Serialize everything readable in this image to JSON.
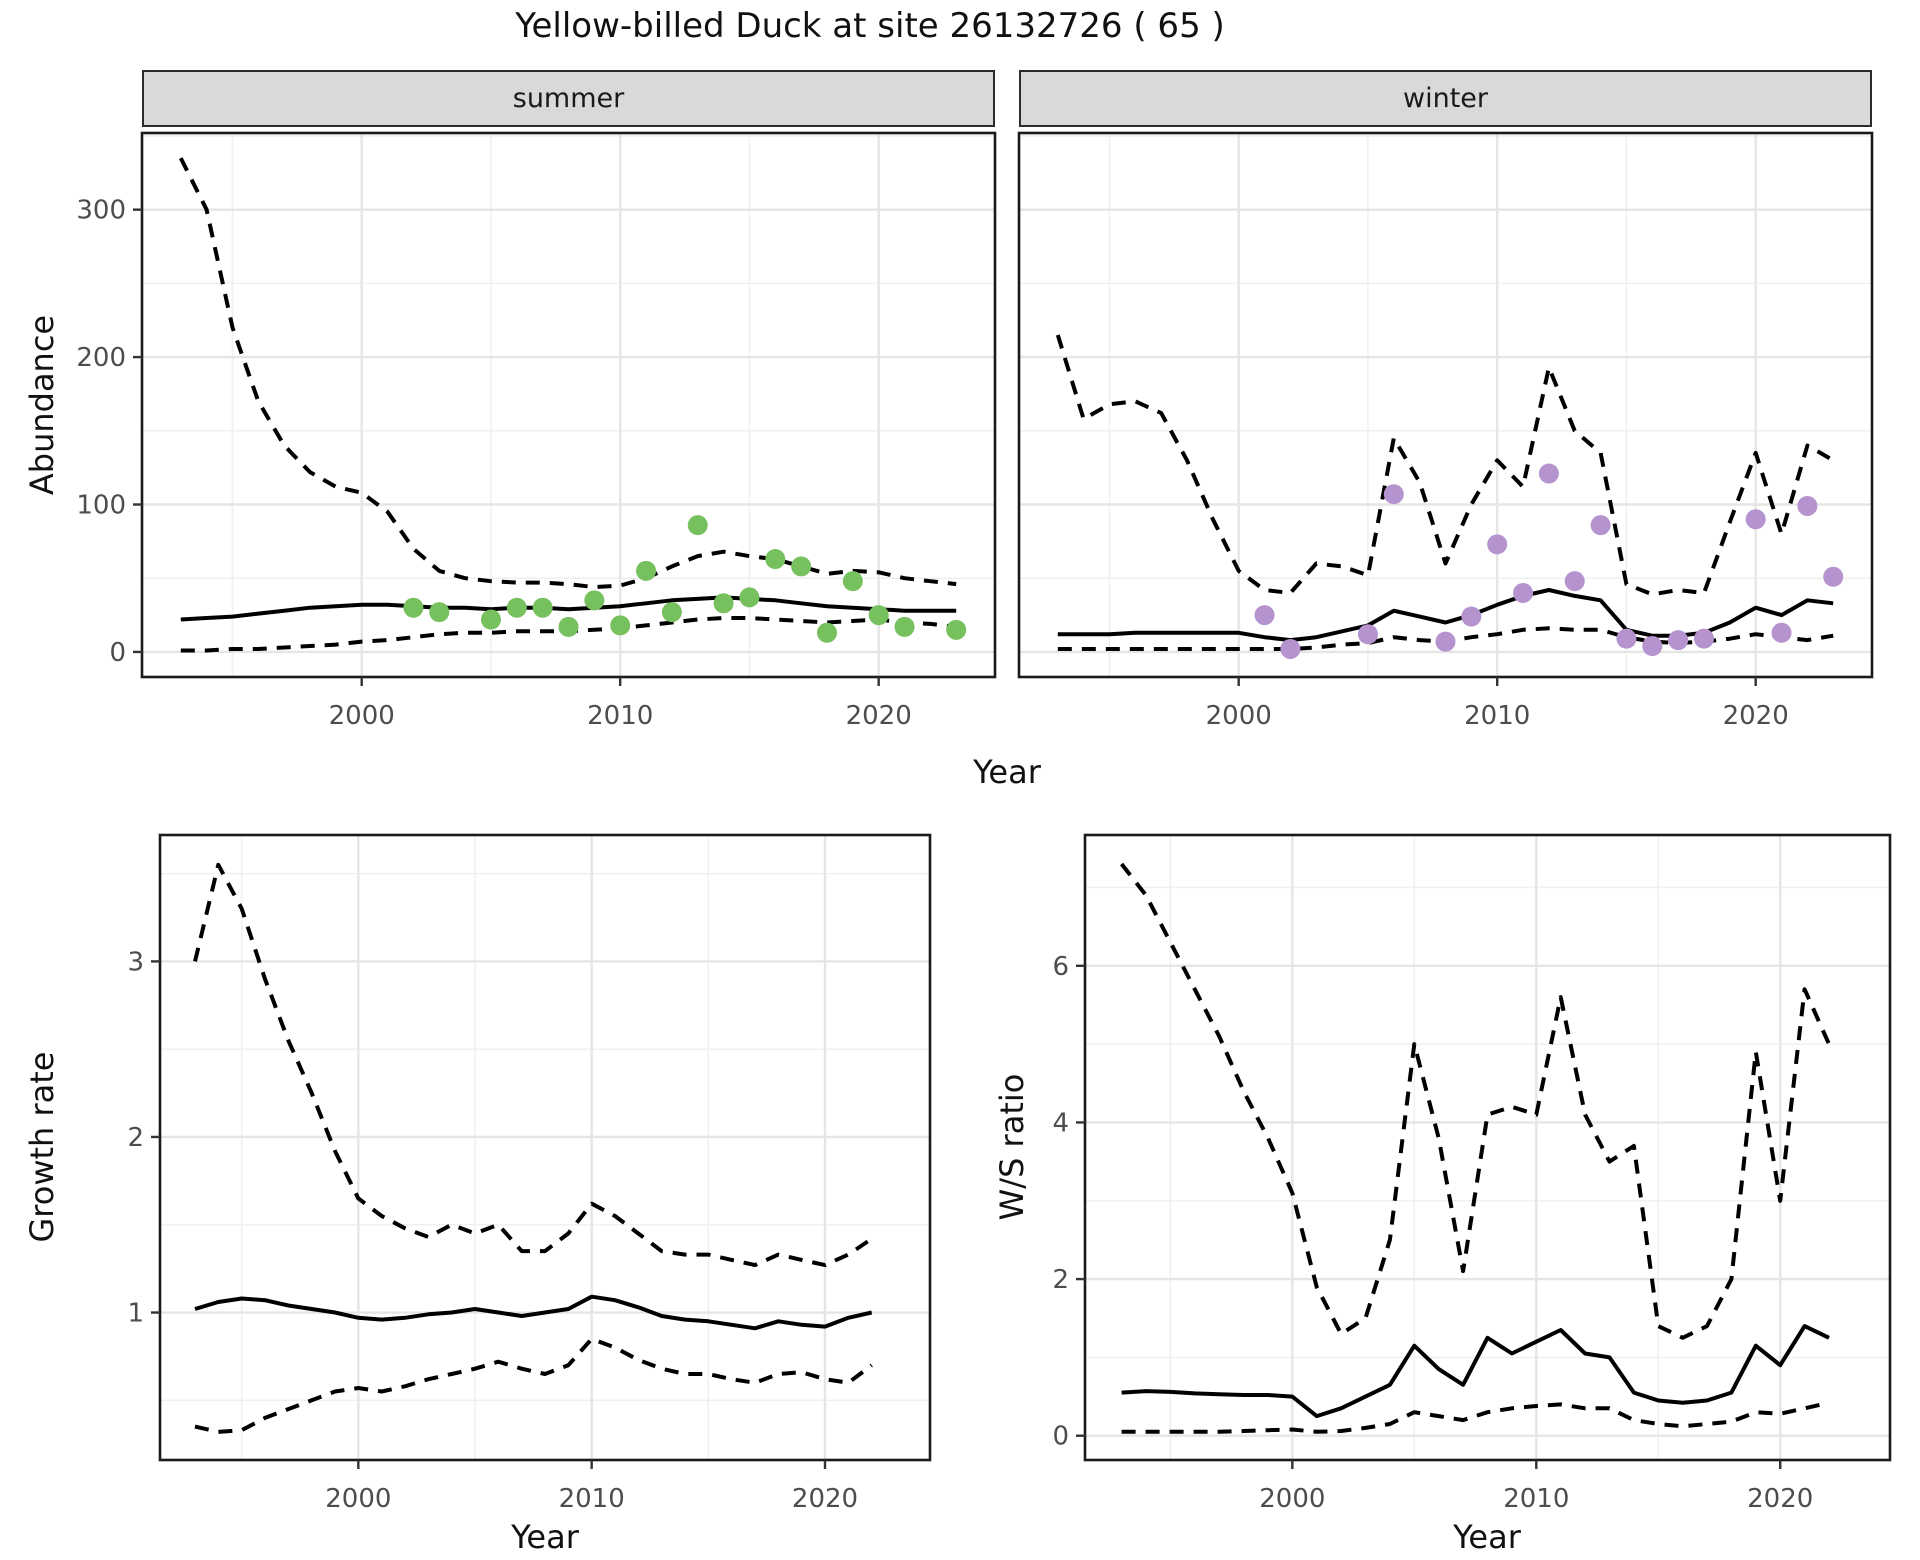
{
  "title": "Yellow-billed Duck at site 26132726 ( 65 )",
  "colors": {
    "summer_points": "#76c05e",
    "winter_points": "#b593ce",
    "line": "#000000",
    "panel_border": "#1a1a1a",
    "grid_major": "#e5e5e5",
    "grid_minor": "#f0f0f0",
    "strip_bg": "#d9d9d9",
    "tick_text": "#4d4d4d"
  },
  "chart_data": [
    {
      "id": "abundance-summer",
      "type": "line",
      "facet_label": "summer",
      "xlabel": "Year",
      "ylabel": "Abundance",
      "xlim": [
        1991.5,
        2024.5
      ],
      "ylim": [
        -17,
        352
      ],
      "xticks": [
        2000,
        2010,
        2020
      ],
      "xminor": [
        1995,
        2005,
        2015
      ],
      "yticks": [
        0,
        100,
        200,
        300
      ],
      "yminor": [
        50,
        150,
        250,
        350
      ],
      "x": [
        1993,
        1994,
        1995,
        1996,
        1997,
        1998,
        1999,
        2000,
        2001,
        2002,
        2003,
        2004,
        2005,
        2006,
        2007,
        2008,
        2009,
        2010,
        2011,
        2012,
        2013,
        2014,
        2015,
        2016,
        2017,
        2018,
        2019,
        2020,
        2021,
        2022,
        2023
      ],
      "series": [
        {
          "name": "upper-ci",
          "style": "dashed",
          "values": [
            335,
            300,
            220,
            170,
            140,
            122,
            112,
            108,
            95,
            70,
            55,
            50,
            48,
            47,
            47,
            46,
            44,
            45,
            50,
            58,
            65,
            68,
            65,
            63,
            58,
            53,
            55,
            54,
            50,
            48,
            46
          ]
        },
        {
          "name": "estimate",
          "style": "solid",
          "values": [
            22,
            23,
            24,
            26,
            28,
            30,
            31,
            32,
            32,
            31,
            30,
            30,
            29,
            30,
            30,
            29,
            30,
            31,
            33,
            35,
            36,
            37,
            36,
            35,
            33,
            31,
            30,
            29,
            28,
            28,
            28
          ]
        },
        {
          "name": "lower-ci",
          "style": "dashed",
          "values": [
            1,
            1,
            2,
            2,
            3,
            4,
            5,
            7,
            8,
            10,
            12,
            13,
            13,
            14,
            14,
            14,
            15,
            16,
            18,
            20,
            22,
            23,
            23,
            22,
            21,
            20,
            21,
            22,
            20,
            19,
            17
          ]
        },
        {
          "name": "observed-counts",
          "style": "points",
          "color": "#76c05e",
          "x": [
            2002,
            2003,
            2005,
            2006,
            2007,
            2008,
            2009,
            2010,
            2011,
            2012,
            2013,
            2014,
            2015,
            2016,
            2017,
            2018,
            2019,
            2020,
            2021,
            2023
          ],
          "values": [
            30,
            27,
            22,
            30,
            30,
            17,
            35,
            18,
            55,
            27,
            86,
            33,
            37,
            63,
            58,
            13,
            48,
            25,
            17,
            15
          ]
        }
      ]
    },
    {
      "id": "abundance-winter",
      "type": "line",
      "facet_label": "winter",
      "xlabel": "Year",
      "ylabel": "Abundance",
      "xlim": [
        1991.5,
        2024.5
      ],
      "ylim": [
        -17,
        352
      ],
      "xticks": [
        2000,
        2010,
        2020
      ],
      "xminor": [
        1995,
        2005,
        2015
      ],
      "yticks": [
        0,
        100,
        200,
        300
      ],
      "yminor": [
        50,
        150,
        250,
        350
      ],
      "x": [
        1993,
        1994,
        1995,
        1996,
        1997,
        1998,
        1999,
        2000,
        2001,
        2002,
        2003,
        2004,
        2005,
        2006,
        2007,
        2008,
        2009,
        2010,
        2011,
        2012,
        2013,
        2014,
        2015,
        2016,
        2017,
        2018,
        2019,
        2020,
        2021,
        2022,
        2023
      ],
      "series": [
        {
          "name": "upper-ci",
          "style": "dashed",
          "values": [
            215,
            158,
            168,
            170,
            162,
            130,
            90,
            55,
            42,
            40,
            60,
            58,
            52,
            145,
            115,
            60,
            100,
            130,
            112,
            193,
            150,
            135,
            46,
            39,
            42,
            40,
            88,
            135,
            80,
            140,
            130
          ]
        },
        {
          "name": "estimate",
          "style": "solid",
          "values": [
            12,
            12,
            12,
            13,
            13,
            13,
            13,
            13,
            10,
            8,
            10,
            14,
            18,
            28,
            24,
            20,
            25,
            32,
            38,
            42,
            38,
            35,
            15,
            11,
            11,
            13,
            20,
            30,
            25,
            35,
            33
          ]
        },
        {
          "name": "lower-ci",
          "style": "dashed",
          "values": [
            2,
            2,
            2,
            2,
            2,
            2,
            2,
            2,
            2,
            2,
            3,
            5,
            6,
            10,
            8,
            7,
            10,
            12,
            15,
            16,
            15,
            15,
            10,
            7,
            6,
            7,
            9,
            12,
            10,
            8,
            11
          ]
        },
        {
          "name": "observed-counts",
          "style": "points",
          "color": "#b593ce",
          "x": [
            2001,
            2002,
            2005,
            2006,
            2008,
            2009,
            2010,
            2011,
            2012,
            2013,
            2014,
            2015,
            2016,
            2017,
            2018,
            2020,
            2021,
            2022,
            2023
          ],
          "values": [
            25,
            2,
            12,
            107,
            7,
            24,
            73,
            40,
            121,
            48,
            86,
            9,
            4,
            8,
            9,
            90,
            13,
            99,
            51
          ]
        }
      ]
    },
    {
      "id": "growth-rate",
      "type": "line",
      "xlabel": "Year",
      "ylabel": "Growth rate",
      "xlim": [
        1991.5,
        2024.5
      ],
      "ylim": [
        0.16,
        3.72
      ],
      "xticks": [
        2000,
        2010,
        2020
      ],
      "xminor": [
        1995,
        2005,
        2015
      ],
      "yticks": [
        1,
        2,
        3
      ],
      "yminor": [
        0.5,
        1.5,
        2.5,
        3.5
      ],
      "x": [
        1993,
        1994,
        1995,
        1996,
        1997,
        1998,
        1999,
        2000,
        2001,
        2002,
        2003,
        2004,
        2005,
        2006,
        2007,
        2008,
        2009,
        2010,
        2011,
        2012,
        2013,
        2014,
        2015,
        2016,
        2017,
        2018,
        2019,
        2020,
        2021,
        2022
      ],
      "series": [
        {
          "name": "upper-ci",
          "style": "dashed",
          "values": [
            3.0,
            3.55,
            3.3,
            2.9,
            2.55,
            2.25,
            1.92,
            1.65,
            1.55,
            1.48,
            1.43,
            1.5,
            1.45,
            1.5,
            1.35,
            1.35,
            1.45,
            1.62,
            1.55,
            1.45,
            1.35,
            1.33,
            1.33,
            1.3,
            1.27,
            1.33,
            1.3,
            1.27,
            1.33,
            1.42
          ]
        },
        {
          "name": "estimate",
          "style": "solid",
          "values": [
            1.02,
            1.06,
            1.08,
            1.07,
            1.04,
            1.02,
            1.0,
            0.97,
            0.96,
            0.97,
            0.99,
            1.0,
            1.02,
            1.0,
            0.98,
            1.0,
            1.02,
            1.09,
            1.07,
            1.03,
            0.98,
            0.96,
            0.95,
            0.93,
            0.91,
            0.95,
            0.93,
            0.92,
            0.97,
            1.0
          ]
        },
        {
          "name": "lower-ci",
          "style": "dashed",
          "values": [
            0.35,
            0.32,
            0.33,
            0.4,
            0.45,
            0.5,
            0.55,
            0.57,
            0.55,
            0.58,
            0.62,
            0.65,
            0.68,
            0.72,
            0.68,
            0.65,
            0.7,
            0.85,
            0.8,
            0.73,
            0.68,
            0.65,
            0.65,
            0.62,
            0.6,
            0.65,
            0.66,
            0.62,
            0.6,
            0.7
          ]
        }
      ]
    },
    {
      "id": "ws-ratio",
      "type": "line",
      "xlabel": "Year",
      "ylabel": "W/S ratio",
      "xlim": [
        1991.5,
        2024.5
      ],
      "ylim": [
        -0.31,
        7.67
      ],
      "xticks": [
        2000,
        2010,
        2020
      ],
      "xminor": [
        1995,
        2005,
        2015
      ],
      "yticks": [
        0,
        2,
        4,
        6
      ],
      "yminor": [
        1,
        3,
        5,
        7
      ],
      "x": [
        1993,
        1994,
        1995,
        1996,
        1997,
        1998,
        1999,
        2000,
        2001,
        2002,
        2003,
        2004,
        2005,
        2006,
        2007,
        2008,
        2009,
        2010,
        2011,
        2012,
        2013,
        2014,
        2015,
        2016,
        2017,
        2018,
        2019,
        2020,
        2021,
        2022
      ],
      "series": [
        {
          "name": "upper-ci",
          "style": "dashed",
          "values": [
            7.3,
            6.9,
            6.3,
            5.7,
            5.1,
            4.4,
            3.8,
            3.1,
            1.9,
            1.3,
            1.5,
            2.5,
            5.0,
            3.8,
            2.1,
            4.1,
            4.2,
            4.1,
            5.6,
            4.1,
            3.5,
            3.7,
            1.4,
            1.25,
            1.4,
            2.0,
            4.9,
            3.0,
            5.7,
            5.0
          ]
        },
        {
          "name": "estimate",
          "style": "solid",
          "values": [
            0.55,
            0.57,
            0.56,
            0.54,
            0.53,
            0.52,
            0.52,
            0.5,
            0.25,
            0.35,
            0.5,
            0.65,
            1.15,
            0.85,
            0.65,
            1.25,
            1.05,
            1.2,
            1.35,
            1.05,
            1.0,
            0.55,
            0.45,
            0.42,
            0.45,
            0.55,
            1.15,
            0.9,
            1.4,
            1.25
          ]
        },
        {
          "name": "lower-ci",
          "style": "dashed",
          "values": [
            0.05,
            0.05,
            0.05,
            0.05,
            0.05,
            0.06,
            0.07,
            0.08,
            0.05,
            0.06,
            0.1,
            0.15,
            0.3,
            0.25,
            0.2,
            0.3,
            0.35,
            0.38,
            0.4,
            0.35,
            0.35,
            0.2,
            0.15,
            0.12,
            0.15,
            0.18,
            0.3,
            0.28,
            0.35,
            0.42
          ]
        }
      ]
    }
  ]
}
